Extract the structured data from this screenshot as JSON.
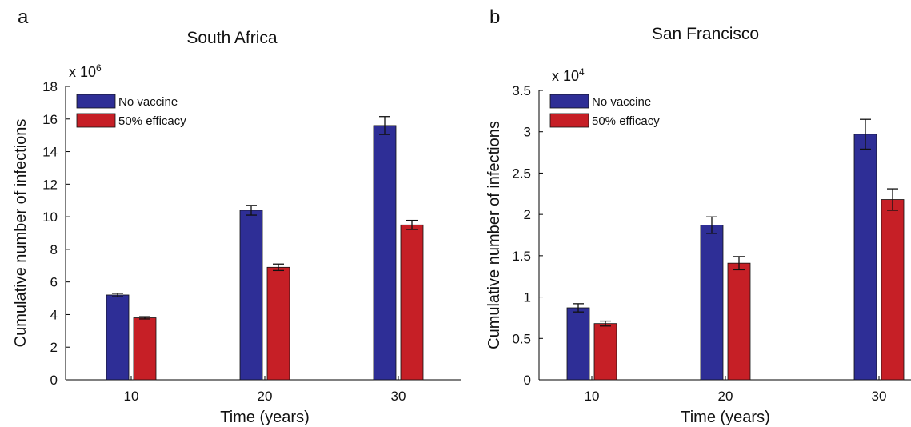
{
  "panels": [
    {
      "letter": "a",
      "multiplier_base": "x 10",
      "multiplier_exp": "6"
    },
    {
      "letter": "b",
      "multiplier_base": "x 10",
      "multiplier_exp": "4"
    }
  ],
  "colors": {
    "no_vaccine": "#2e2e96",
    "efficacy_50": "#c61f26"
  },
  "chart_data": [
    {
      "type": "bar",
      "title": "South Africa",
      "xlabel": "Time (years)",
      "ylabel": "Cumulative number of infections",
      "categories": [
        "10",
        "20",
        "30"
      ],
      "ylim": [
        0,
        18
      ],
      "yticks": [
        0,
        2,
        4,
        6,
        8,
        10,
        12,
        14,
        16,
        18
      ],
      "ytick_labels": [
        "0",
        "2",
        "4",
        "6",
        "8",
        "10",
        "12",
        "14",
        "16",
        "18"
      ],
      "series": [
        {
          "name": "No vaccine",
          "values": [
            5.2,
            10.4,
            15.6
          ],
          "errors": [
            0.1,
            0.3,
            0.55
          ]
        },
        {
          "name": "50% efficacy",
          "values": [
            3.8,
            6.9,
            9.5
          ],
          "errors": [
            0.07,
            0.2,
            0.28
          ]
        }
      ],
      "legend": "top-left"
    },
    {
      "type": "bar",
      "title": "San Francisco",
      "xlabel": "Time (years)",
      "ylabel": "Cumulative number of infections",
      "categories": [
        "10",
        "20",
        "30"
      ],
      "ylim": [
        0,
        3.5
      ],
      "yticks": [
        0,
        0.5,
        1,
        1.5,
        2,
        2.5,
        3,
        3.5
      ],
      "ytick_labels": [
        "0",
        "0.5",
        "1",
        "1.5",
        "2",
        "2.5",
        "3",
        "3.5"
      ],
      "series": [
        {
          "name": "No vaccine",
          "values": [
            0.87,
            1.87,
            2.97
          ],
          "errors": [
            0.05,
            0.1,
            0.18
          ]
        },
        {
          "name": "50% efficacy",
          "values": [
            0.68,
            1.41,
            2.18
          ],
          "errors": [
            0.03,
            0.08,
            0.13
          ]
        }
      ],
      "legend": "top-left"
    }
  ]
}
